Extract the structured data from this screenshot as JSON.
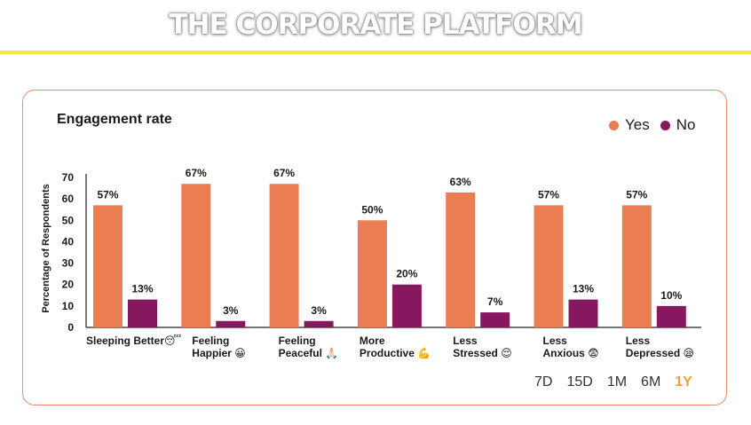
{
  "header": {
    "title": "THE CORPORATE PLATFORM"
  },
  "colors": {
    "yes": "#eb7d52",
    "no": "#86185f",
    "accent": "#f39a3d",
    "rule": "#f8e34a"
  },
  "time_ranges": [
    {
      "label": "7D",
      "active": false
    },
    {
      "label": "15D",
      "active": false
    },
    {
      "label": "1M",
      "active": false
    },
    {
      "label": "6M",
      "active": false
    },
    {
      "label": "1Y",
      "active": true
    }
  ],
  "chart_data": {
    "type": "bar",
    "title": "Engagement rate",
    "xlabel": "",
    "ylabel": "Percentage of Respondents",
    "ylim": [
      0,
      70
    ],
    "yticks": [
      0,
      10,
      20,
      30,
      40,
      50,
      60,
      70
    ],
    "grid": false,
    "legend_position": "top-right",
    "categories": [
      [
        "Sleeping Better😴"
      ],
      [
        "Feeling",
        "Happier 😀"
      ],
      [
        "Feeling",
        "Peaceful 🙏🏻"
      ],
      [
        "More",
        "Productive 💪"
      ],
      [
        "Less",
        "Stressed 😌"
      ],
      [
        "Less",
        "Anxious 😨"
      ],
      [
        "Less",
        "Depressed 😪"
      ]
    ],
    "series": [
      {
        "name": "Yes",
        "values": [
          57,
          67,
          67,
          50,
          63,
          57,
          57
        ],
        "labels": [
          "57%",
          "67%",
          "67%",
          "50%",
          "63%",
          "57%",
          "57%"
        ]
      },
      {
        "name": "No",
        "values": [
          13,
          3,
          3,
          20,
          7,
          13,
          10
        ],
        "labels": [
          "13%",
          "3%",
          "3%",
          "20%",
          "7%",
          "13%",
          "10%"
        ]
      }
    ]
  }
}
